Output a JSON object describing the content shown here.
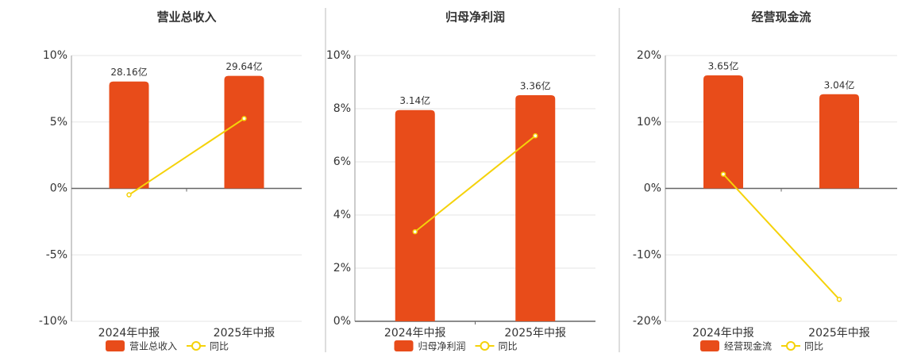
{
  "chart_data": [
    {
      "type": "combo",
      "title": "营业总收入",
      "categories": [
        "2024年中报",
        "2025年中报"
      ],
      "series": [
        {
          "name": "营业总收入",
          "color": "#e84c1a",
          "type": "bar",
          "axis": "y2",
          "values": [
            28.16,
            29.64
          ],
          "value_labels": [
            "28.16亿",
            "29.64亿"
          ]
        },
        {
          "name": "同比",
          "color": "#f5d20a",
          "type": "line",
          "values": [
            -0.48,
            5.26
          ]
        }
      ],
      "ylim": [
        -10,
        10
      ],
      "yticks": [
        {
          "value": -10,
          "label": "-10%"
        },
        {
          "value": -5,
          "label": "-5%"
        },
        {
          "value": 0,
          "label": "0%"
        },
        {
          "value": 5,
          "label": "5%"
        },
        {
          "value": 10,
          "label": "10%"
        }
      ],
      "y2lim": [
        -35,
        35
      ],
      "grid": true
    },
    {
      "type": "combo",
      "title": "归母净利润",
      "categories": [
        "2024年中报",
        "2025年中报"
      ],
      "series": [
        {
          "name": "归母净利润",
          "color": "#e84c1a",
          "type": "bar",
          "axis": "y2",
          "values": [
            3.14,
            3.36
          ],
          "value_labels": [
            "3.14亿",
            "3.36亿"
          ]
        },
        {
          "name": "同比",
          "color": "#f5d20a",
          "type": "line",
          "values": [
            3.37,
            6.98
          ]
        }
      ],
      "ylim": [
        0,
        10
      ],
      "yticks": [
        {
          "value": 0,
          "label": "0%"
        },
        {
          "value": 2,
          "label": "2%"
        },
        {
          "value": 4,
          "label": "4%"
        },
        {
          "value": 6,
          "label": "6%"
        },
        {
          "value": 8,
          "label": "8%"
        },
        {
          "value": 10,
          "label": "10%"
        }
      ],
      "y2lim": [
        0,
        3.95
      ],
      "grid": true
    },
    {
      "type": "combo",
      "title": "经营现金流",
      "categories": [
        "2024年中报",
        "2025年中报"
      ],
      "series": [
        {
          "name": "经营现金流",
          "color": "#e84c1a",
          "type": "bar",
          "axis": "y2",
          "values": [
            3.65,
            3.04
          ],
          "value_labels": [
            "3.65亿",
            "3.04亿"
          ]
        },
        {
          "name": "同比",
          "color": "#f5d20a",
          "type": "line",
          "values": [
            2.14,
            -16.7
          ]
        }
      ],
      "ylim": [
        -20,
        20
      ],
      "yticks": [
        {
          "value": -20,
          "label": "-20%"
        },
        {
          "value": -10,
          "label": "-10%"
        },
        {
          "value": 0,
          "label": "0%"
        },
        {
          "value": 10,
          "label": "10%"
        },
        {
          "value": 20,
          "label": "20%"
        }
      ],
      "y2lim": [
        -4.29,
        4.29
      ],
      "grid": true
    }
  ]
}
